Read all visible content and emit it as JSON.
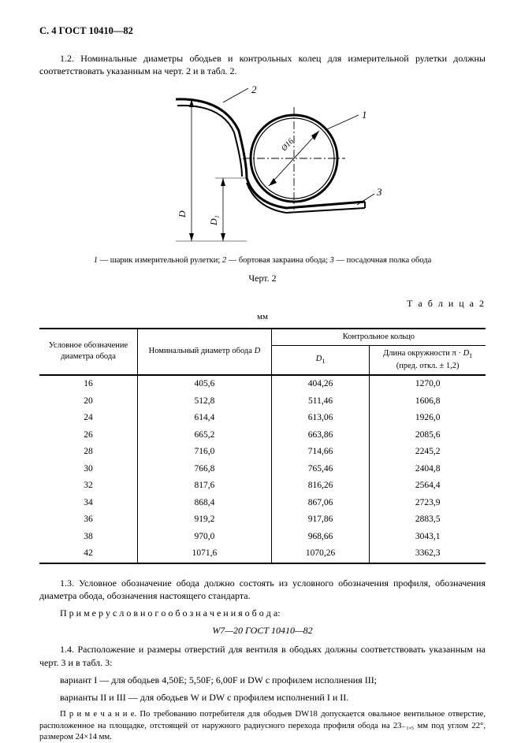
{
  "header": "С. 4 ГОСТ 10410—82",
  "p12": "1.2. Номинальные диаметры ободьев и контрольных колец для измерительной рулетки должны соответствовать указанным на черт. 2 и в табл. 2.",
  "figure": {
    "call1": "1",
    "call2": "2",
    "call3": "3",
    "phi": "Ø16",
    "dimD": "D",
    "dimD1": "D₁"
  },
  "caption": "1 — шарик измерительной рулетки; 2 — бортовая закраина обода; 3 — посадочная полка обода",
  "figLabel": "Черт. 2",
  "tableLabel": "Т а б л и ц а  2",
  "unit": "мм",
  "thead": {
    "c1a": "Условное обозначение",
    "c1b": "диаметра обода",
    "c2": "Номинальный диаметр обода D",
    "c34": "Контрольное кольцо",
    "c3": "D₁",
    "c4a": "Длина окружности π · D₁",
    "c4b": "(пред. откл. ± 1,2)"
  },
  "rows": [
    [
      "16",
      "405,6",
      "404,26",
      "1270,0"
    ],
    [
      "20",
      "512,8",
      "511,46",
      "1606,8"
    ],
    [
      "24",
      "614,4",
      "613,06",
      "1926,0"
    ],
    [
      "26",
      "665,2",
      "663,86",
      "2085,6"
    ],
    [
      "28",
      "716,0",
      "714,66",
      "2245,2"
    ],
    [
      "30",
      "766,8",
      "765,46",
      "2404,8"
    ],
    [
      "32",
      "817,6",
      "816,26",
      "2564,4"
    ],
    [
      "34",
      "868,4",
      "867,06",
      "2723,9"
    ],
    [
      "36",
      "919,2",
      "917,86",
      "2883,5"
    ],
    [
      "38",
      "970,0",
      "968,66",
      "3043,1"
    ],
    [
      "42",
      "1071,6",
      "1070,26",
      "3362,3"
    ]
  ],
  "p13": "1.3. Условное обозначение обода должно состоять из условного обозначения профиля, обозначения диаметра обода, обозначения настоящего стандарта.",
  "p13ex_label": "П р и м е р   у с л о в н о г о   о б о з н а ч е н и я   о б о д а:",
  "example": "W7—20 ГОСТ 10410—82",
  "p14a": "1.4. Расположение и размеры отверстий для вентиля в ободьях должны соответствовать указанным на черт. 3 и в табл. 3:",
  "p14b": "вариант I — для ободьев 4,50E; 5,50F; 6,00F и DW с профилем исполнения III;",
  "p14c": "варианты II и III — для ободьев W и DW с профилем исполнений I и II.",
  "note": "П р и м е ч а н и е. По требованию потребителя для ободьев DW18 допускается овальное вентильное отверстие, расположенное на площадке, отстоящей от наружного радиусного перехода профиля обода на 23₋₁,₅ мм под углом 22°, размером 24×14 мм."
}
